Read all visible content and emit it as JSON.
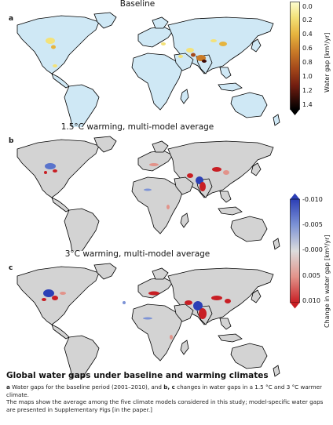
{
  "panels": [
    {
      "letter": "a",
      "title": "Baseline"
    },
    {
      "letter": "b",
      "title": "1.5°C warming, multi-model average"
    },
    {
      "letter": "c",
      "title": "3°C warming, multi-model average"
    }
  ],
  "colorbar_baseline": {
    "label": "Water gap [km³/yr]",
    "ticks": [
      "0.0",
      "0.2",
      "0.4",
      "0.6",
      "0.8",
      "1.0",
      "1.2",
      "1.4"
    ],
    "colors": [
      "#fdfdd0",
      "#f3e27a",
      "#e6b43e",
      "#c97b28",
      "#a4481a",
      "#711d10",
      "#3d0a07",
      "#000000"
    ]
  },
  "colorbar_change": {
    "label": "Change in water gap [km³/yr]",
    "ticks": [
      "-0.010",
      "-0.005",
      "-0.000",
      "0.005",
      "0.010"
    ],
    "colors": [
      "#2c3fb6",
      "#7d93d6",
      "#dcdcdc",
      "#e2938a",
      "#c81e24"
    ]
  },
  "caption": {
    "title": "Global water gaps under baseline and warming climates",
    "line1_a": "a",
    "line1_mid": " Water gaps for the baseline period (2001–2010), and ",
    "line1_bc": "b, c",
    "line1_end": " changes in water gaps in a 1.5 °C and 3 °C warmer climate.",
    "line2": "The maps show the average among the five climate models considered in this study; model-specific water gaps are presented in Supplementary Figs [in the paper.]"
  },
  "colors": {
    "land_baseline": "#cfe8f5",
    "land_change": "#d3d3d3",
    "coast": "#000000"
  }
}
